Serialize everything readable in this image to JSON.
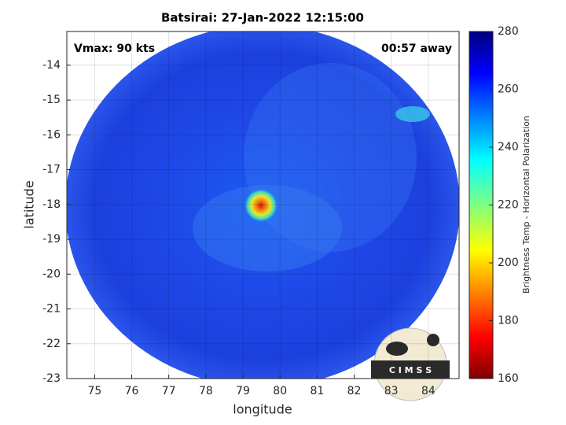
{
  "chart_data": {
    "type": "heatmap",
    "title": "Batsirai: 27-Jan-2022 12:15:00",
    "xlabel": "longitude",
    "ylabel": "latitude",
    "xlim": [
      74.25,
      84.83
    ],
    "ylim": [
      -23,
      -13.03
    ],
    "xticks": [
      75,
      76,
      77,
      78,
      79,
      80,
      81,
      82,
      83,
      84
    ],
    "yticks": [
      -23,
      -22,
      -21,
      -20,
      -19,
      -18,
      -17,
      -16,
      -15,
      -14
    ],
    "grid": true,
    "annotations": [
      "Vmax: 90 kts",
      "00:57 away"
    ],
    "colorbar": {
      "label": "Brightness Temp - Horizontal Polarization",
      "lim": [
        160,
        280
      ],
      "ticks": [
        160,
        180,
        200,
        220,
        240,
        260,
        280
      ]
    },
    "logo": "C I M S S"
  }
}
